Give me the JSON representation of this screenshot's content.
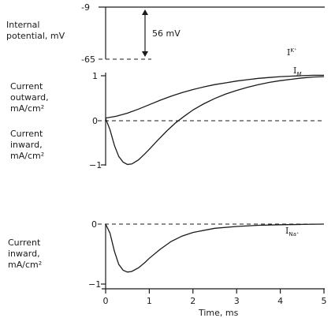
{
  "chart_data": [
    {
      "type": "line",
      "panel": "voltage",
      "ylabel": [
        "Internal",
        "potential, mV"
      ],
      "yticks": [
        -9,
        -65
      ],
      "annotation": "56 mV",
      "xlim": [
        0,
        5
      ],
      "ylim": [
        -65,
        -9
      ],
      "series": [
        {
          "points": [
            [
              0,
              -65
            ],
            [
              0,
              -9
            ],
            [
              5,
              -9
            ]
          ]
        }
      ]
    },
    {
      "type": "line",
      "panel": "potassium-and-total-current",
      "ylabel_top": [
        "Current",
        "outward,",
        "mA/cm²"
      ],
      "ylabel_bottom": [
        "Current",
        "inward,",
        "mA/cm²"
      ],
      "yticks": [
        "1",
        "0",
        "−1"
      ],
      "ylim": [
        -1,
        1
      ],
      "xlim": [
        0,
        5
      ],
      "zero_line": "dashed",
      "series": [
        {
          "name": "IK+",
          "name_main": "I",
          "name_sub": "K⁺",
          "x": [
            0,
            0.25,
            0.5,
            0.75,
            1,
            1.25,
            1.5,
            1.75,
            2,
            2.25,
            2.5,
            2.75,
            3,
            3.25,
            3.5,
            3.75,
            4,
            4.25,
            4.5,
            4.75,
            5
          ],
          "y": [
            0.06,
            0.1,
            0.17,
            0.26,
            0.36,
            0.46,
            0.55,
            0.63,
            0.7,
            0.76,
            0.81,
            0.85,
            0.89,
            0.92,
            0.95,
            0.97,
            0.99,
            1.0,
            1.01,
            1.02,
            1.02
          ]
        },
        {
          "name": "IM",
          "name_main": "I",
          "name_sub": "M",
          "x": [
            0,
            0.1,
            0.2,
            0.3,
            0.4,
            0.5,
            0.6,
            0.75,
            0.9,
            1.0,
            1.2,
            1.4,
            1.6,
            1.8,
            2.0,
            2.25,
            2.5,
            2.75,
            3.0,
            3.25,
            3.5,
            3.75,
            4.0,
            4.25,
            4.5,
            4.75,
            5
          ],
          "y": [
            0.05,
            -0.2,
            -0.55,
            -0.8,
            -0.93,
            -0.98,
            -0.97,
            -0.88,
            -0.74,
            -0.64,
            -0.43,
            -0.23,
            -0.05,
            0.1,
            0.24,
            0.38,
            0.5,
            0.6,
            0.68,
            0.75,
            0.81,
            0.86,
            0.9,
            0.93,
            0.96,
            0.98,
            0.99
          ]
        }
      ]
    },
    {
      "type": "line",
      "panel": "sodium-current",
      "ylabel": [
        "Current",
        "inward,",
        "mA/cm²"
      ],
      "yticks": [
        "0",
        "−1"
      ],
      "ylim": [
        -1,
        0
      ],
      "xlim": [
        0,
        5
      ],
      "xlabel": "Time, ms",
      "xticks": [
        "0",
        "1",
        "2",
        "3",
        "4",
        "5"
      ],
      "zero_line": "dashed",
      "series": [
        {
          "name": "INa+",
          "name_main": "I",
          "name_sub": "Na⁺",
          "x": [
            0,
            0.1,
            0.2,
            0.3,
            0.4,
            0.5,
            0.6,
            0.75,
            0.9,
            1.0,
            1.25,
            1.5,
            1.75,
            2.0,
            2.5,
            3.0,
            3.5,
            4.0,
            4.5,
            5
          ],
          "y": [
            0,
            -0.15,
            -0.45,
            -0.67,
            -0.77,
            -0.8,
            -0.79,
            -0.73,
            -0.64,
            -0.57,
            -0.42,
            -0.29,
            -0.2,
            -0.14,
            -0.07,
            -0.04,
            -0.02,
            -0.01,
            -0.005,
            0
          ]
        }
      ]
    }
  ]
}
